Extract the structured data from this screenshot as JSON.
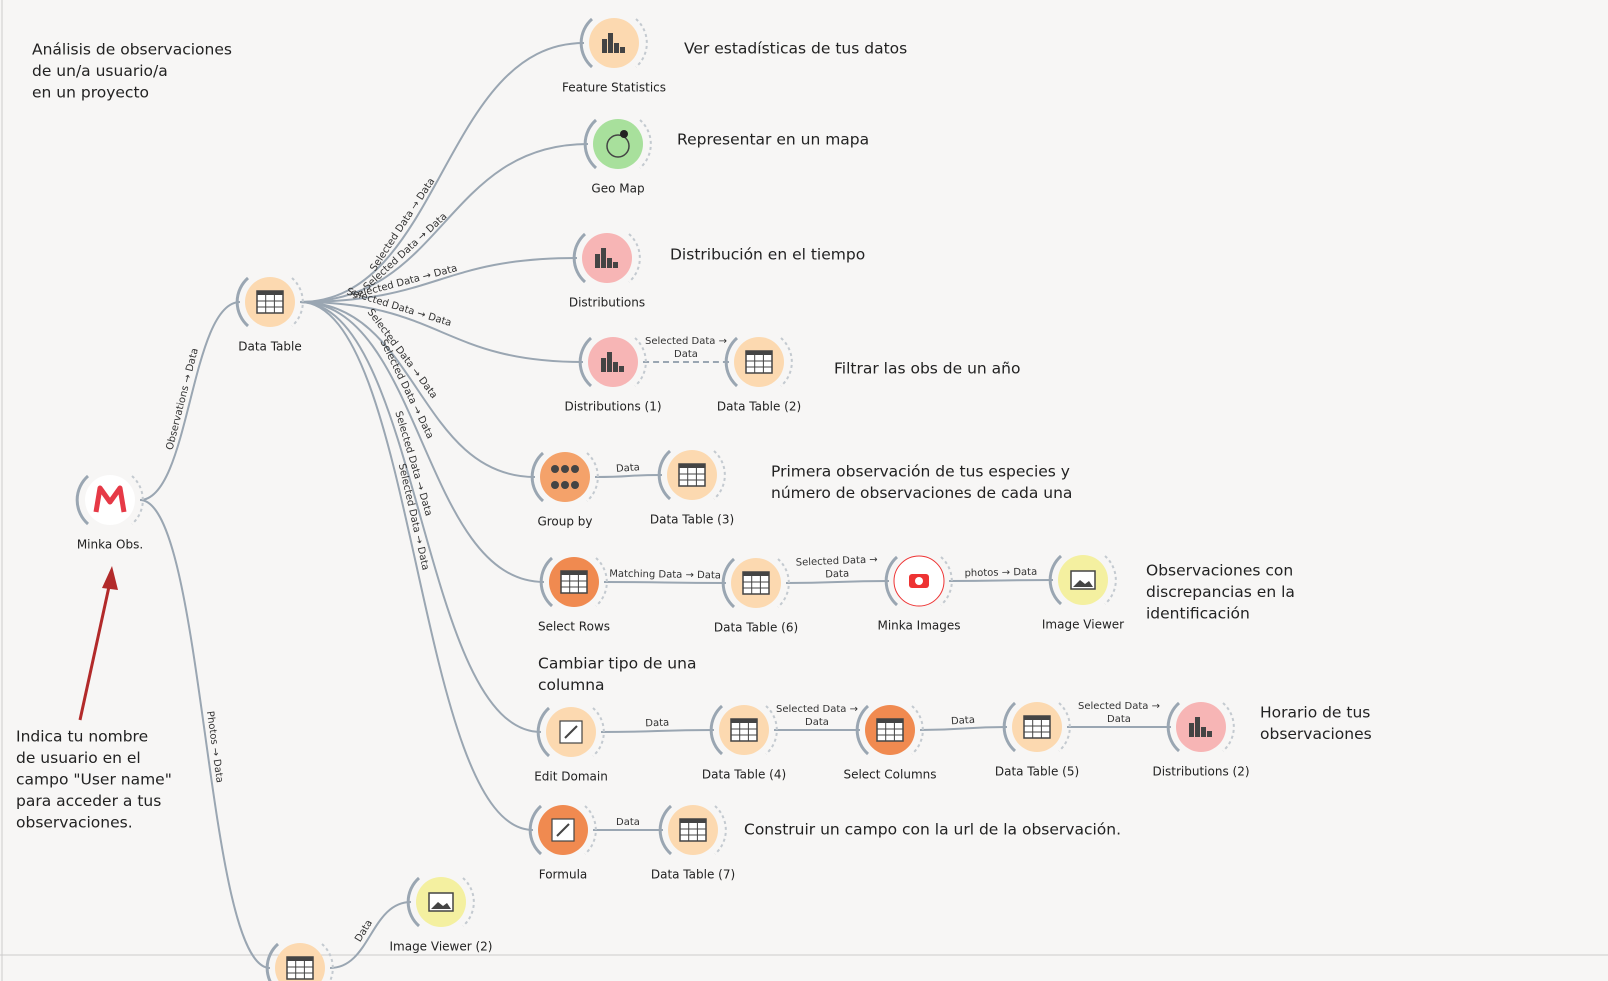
{
  "annotations": [
    [
      "Análisis de observaciones",
      "de un/a usuario/a",
      "en un proyecto"
    ],
    [
      "Ver estadísticas de tus datos"
    ],
    [
      "Representar en un mapa"
    ],
    [
      "Distribución en el tiempo"
    ],
    [
      "Filtrar las obs de un año"
    ],
    [
      "Primera observación de tus especies y",
      "número de observaciones de cada una"
    ],
    [
      "Observaciones con",
      "discrepancias en la",
      "identificación"
    ],
    [
      "Cambiar tipo de una",
      "columna"
    ],
    [
      "Horario de tus",
      "observaciones"
    ],
    [
      "Construir un campo con la url de la observación."
    ],
    [
      "Indica tu nombre",
      "de usuario en el",
      "campo \"User name\"",
      "para acceder a tus",
      "observaciones."
    ]
  ],
  "nodes": [
    "Minka Obs.",
    "Data Table",
    "Feature Statistics",
    "Geo Map",
    "Distributions",
    "Distributions (1)",
    "Data Table (2)",
    "Group by",
    "Data Table (3)",
    "Select Rows",
    "Data Table (6)",
    "Minka Images",
    "Image Viewer",
    "Edit Domain",
    "Data Table (4)",
    "Select Columns",
    "Data Table (5)",
    "Distributions (2)",
    "Formula",
    "Data Table (7)",
    "Image Viewer (2)"
  ],
  "links": [
    [
      "Observations → Data"
    ],
    [
      "Photos → Data"
    ],
    [
      "Selected Data → Data"
    ],
    [
      "Selected Data → Data"
    ],
    [
      "Selected Data → Data"
    ],
    [
      "Selected Data → Data"
    ],
    [
      "Selected Data → Data"
    ],
    [
      "Selected Data → Data"
    ],
    [
      "Selected Data → Data"
    ],
    [
      "Selected Data → Data"
    ],
    [
      "Selected Data →",
      "Data"
    ],
    [
      "Data"
    ],
    [
      "Matching Data → Data"
    ],
    [
      "Selected Data →",
      "Data"
    ],
    [
      "photos → Data"
    ],
    [
      "Data"
    ],
    [
      "Selected Data →",
      "Data"
    ],
    [
      "Data"
    ],
    [
      "Selected Data →",
      "Data"
    ],
    [
      "Data"
    ],
    [
      "Data"
    ]
  ]
}
